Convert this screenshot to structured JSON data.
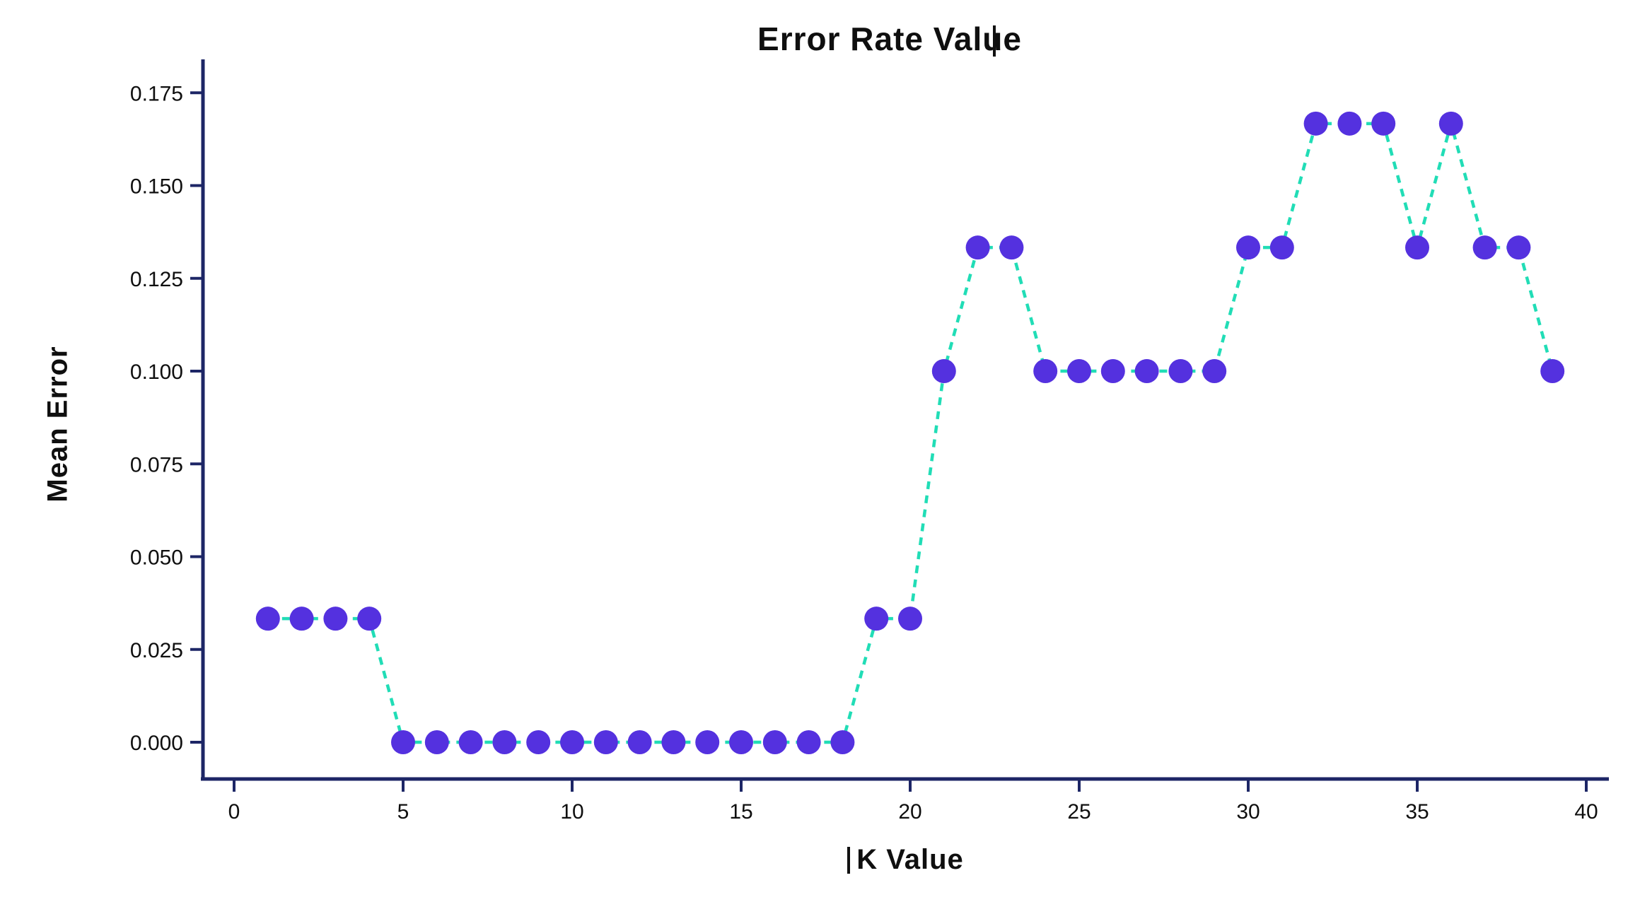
{
  "chart_data": {
    "type": "line",
    "title": "Error Rate Value",
    "xlabel": "K Value",
    "ylabel": "Mean Error",
    "series": [
      {
        "name": "mean-error",
        "x": [
          1,
          2,
          3,
          4,
          5,
          6,
          7,
          8,
          9,
          10,
          11,
          12,
          13,
          14,
          15,
          16,
          17,
          18,
          19,
          20,
          21,
          22,
          23,
          24,
          25,
          26,
          27,
          28,
          29,
          30,
          31,
          32,
          33,
          34,
          35,
          36,
          37,
          38,
          39
        ],
        "values": [
          0.0333,
          0.0333,
          0.0333,
          0.0333,
          0,
          0,
          0,
          0,
          0,
          0,
          0,
          0,
          0,
          0,
          0,
          0,
          0,
          0,
          0.0333,
          0.0333,
          0.1,
          0.1333,
          0.1333,
          0.1,
          0.1,
          0.1,
          0.1,
          0.1,
          0.1,
          0.1333,
          0.1333,
          0.1667,
          0.1667,
          0.1667,
          0.1333,
          0.1667,
          0.1333,
          0.1333,
          0.1
        ],
        "line_style": "dashed",
        "marker": "circle"
      }
    ],
    "x_ticks": [
      0,
      5,
      10,
      15,
      20,
      25,
      30,
      35,
      40
    ],
    "y_ticks": [
      0,
      0.025,
      0.05,
      0.075,
      0.1,
      0.125,
      0.15,
      0.175
    ],
    "y_tick_labels": [
      "0.000",
      "0.025",
      "0.050",
      "0.075",
      "0.100",
      "0.125",
      "0.150",
      "0.175"
    ],
    "xlim": [
      -0.9,
      40.7
    ],
    "ylim": [
      -0.01,
      0.184
    ],
    "grid": false,
    "legend": null,
    "colors": {
      "line": "#21ddb6",
      "marker": "#5431df",
      "axis": "#1d2666",
      "text": "#0f0f0f",
      "background": "#ffffff"
    }
  }
}
